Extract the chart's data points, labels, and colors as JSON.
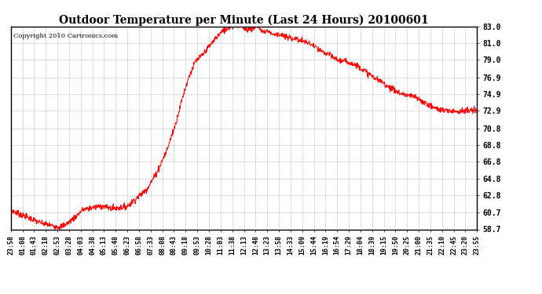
{
  "title": "Outdoor Temperature per Minute (Last 24 Hours) 20100601",
  "copyright": "Copyright 2010 Cartronics.com",
  "y_min": 58.7,
  "y_max": 83.0,
  "y_ticks": [
    58.7,
    60.7,
    62.8,
    64.8,
    66.8,
    68.8,
    70.8,
    72.9,
    74.9,
    76.9,
    79.0,
    81.0,
    83.0
  ],
  "line_color": "#ff0000",
  "background_color": "#ffffff",
  "grid_color": "#b0b0b0",
  "x_labels": [
    "23:58",
    "01:08",
    "01:43",
    "02:18",
    "02:53",
    "03:28",
    "04:03",
    "04:38",
    "05:13",
    "05:48",
    "06:23",
    "06:58",
    "07:33",
    "08:08",
    "08:43",
    "09:18",
    "09:53",
    "10:28",
    "11:03",
    "11:38",
    "12:13",
    "12:48",
    "13:23",
    "13:58",
    "14:33",
    "15:09",
    "15:44",
    "16:19",
    "16:54",
    "17:29",
    "18:04",
    "18:39",
    "19:15",
    "19:50",
    "20:25",
    "21:00",
    "21:35",
    "22:10",
    "22:45",
    "23:20",
    "23:55"
  ],
  "control_x": [
    0,
    30,
    60,
    90,
    120,
    150,
    170,
    200,
    220,
    250,
    280,
    310,
    340,
    360,
    390,
    420,
    450,
    480,
    510,
    530,
    550,
    570,
    590,
    610,
    630,
    650,
    670,
    690,
    710,
    730,
    750,
    760,
    770,
    780,
    790,
    800,
    820,
    850,
    880,
    910,
    940,
    970,
    1000,
    1030,
    1060,
    1090,
    1120,
    1150,
    1180,
    1200,
    1220,
    1250,
    1280,
    1310,
    1339
  ],
  "control_y": [
    61.0,
    60.5,
    60.0,
    59.5,
    59.2,
    59.0,
    59.3,
    60.2,
    61.0,
    61.3,
    61.5,
    61.2,
    61.3,
    61.5,
    62.5,
    63.5,
    65.5,
    68.0,
    71.5,
    74.5,
    77.0,
    78.8,
    79.5,
    80.5,
    81.5,
    82.3,
    82.8,
    83.2,
    83.0,
    82.5,
    82.7,
    83.1,
    82.8,
    82.4,
    82.6,
    82.5,
    82.2,
    81.8,
    81.5,
    81.0,
    80.5,
    79.8,
    79.2,
    78.8,
    78.5,
    77.8,
    77.0,
    76.2,
    75.5,
    75.0,
    74.8,
    74.5,
    73.8,
    73.2,
    72.9
  ]
}
